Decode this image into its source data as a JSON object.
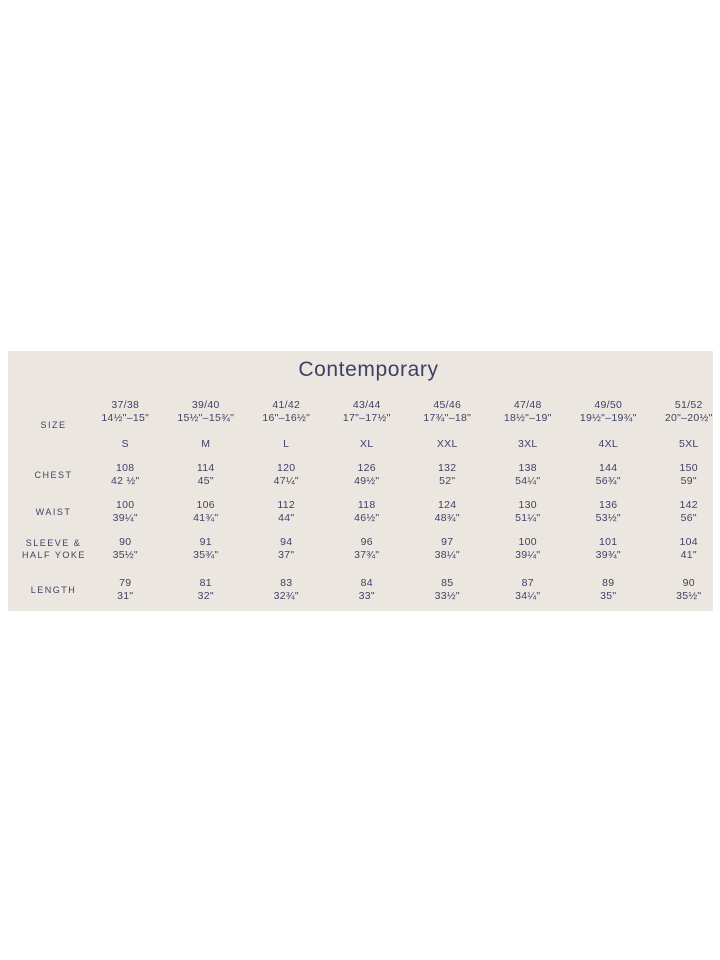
{
  "title": "Contemporary",
  "colors": {
    "page_bg": "#FFFFFF",
    "panel_bg": "#ECE6E0",
    "text": "#3E4164"
  },
  "table": {
    "size": {
      "label": "SIZE",
      "collar": [
        "37/38",
        "39/40",
        "41/42",
        "43/44",
        "45/46",
        "47/48",
        "49/50",
        "51/52"
      ],
      "collar_inches": [
        "14½\"–15\"",
        "15½\"–15¾\"",
        "16\"–16½\"",
        "17\"–17½\"",
        "17¾\"–18\"",
        "18½\"–19\"",
        "19½\"–19¾\"",
        "20\"–20½\""
      ],
      "letters": [
        "S",
        "M",
        "L",
        "XL",
        "XXL",
        "3XL",
        "4XL",
        "5XL"
      ]
    },
    "chest": {
      "label": "CHEST",
      "cm": [
        "108",
        "114",
        "120",
        "126",
        "132",
        "138",
        "144",
        "150"
      ],
      "inches": [
        "42 ½\"",
        "45\"",
        "47¼\"",
        "49½\"",
        "52\"",
        "54¼\"",
        "56¾\"",
        "59\""
      ]
    },
    "waist": {
      "label": "WAIST",
      "cm": [
        "100",
        "106",
        "112",
        "118",
        "124",
        "130",
        "136",
        "142"
      ],
      "inches": [
        "39¼\"",
        "41¾\"",
        "44\"",
        "46½\"",
        "48¾\"",
        "51¼\"",
        "53½\"",
        "56\""
      ]
    },
    "sleeve": {
      "label_line1": "SLEEVE &",
      "label_line2": "HALF YOKE",
      "cm": [
        "90",
        "91",
        "94",
        "96",
        "97",
        "100",
        "101",
        "104"
      ],
      "inches": [
        "35½\"",
        "35¾\"",
        "37\"",
        "37¾\"",
        "38¼\"",
        "39¼\"",
        "39¾\"",
        "41\""
      ]
    },
    "length": {
      "label": "LENGTH",
      "cm": [
        "79",
        "81",
        "83",
        "84",
        "85",
        "87",
        "89",
        "90"
      ],
      "inches": [
        "31\"",
        "32\"",
        "32¾\"",
        "33\"",
        "33½\"",
        "34¼\"",
        "35\"",
        "35½\""
      ]
    }
  }
}
